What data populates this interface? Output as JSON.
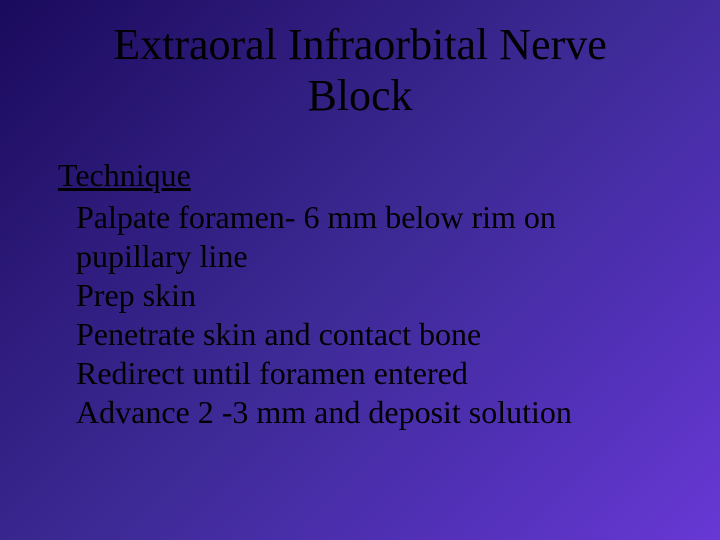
{
  "slide": {
    "title": "Extraoral Infraorbital Nerve Block",
    "section_heading": "Technique",
    "lines": [
      "Palpate foramen- 6 mm below rim on pupillary line",
      "Prep skin",
      "Penetrate skin and contact bone",
      "Redirect until foramen entered",
      "Advance 2 -3 mm and deposit solution"
    ],
    "colors": {
      "text": "#000000",
      "bg_gradient_start": "#1a0a5c",
      "bg_gradient_end": "#6838d5"
    },
    "typography": {
      "font_family": "Times New Roman",
      "title_fontsize_pt": 33,
      "body_fontsize_pt": 24
    }
  }
}
